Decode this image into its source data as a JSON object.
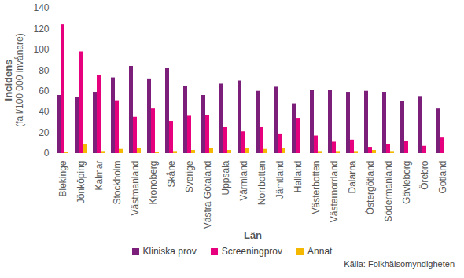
{
  "chart_data": {
    "type": "bar",
    "xlabel": "Län",
    "ylabel": "Incidens\n(fall/100 000 invånare)",
    "source": "Källa: Folkhälsomyndigheten",
    "categories": [
      "Blekinge",
      "Jönköping",
      "Kalmar",
      "Stockholm",
      "Västmanland",
      "Kronoberg",
      "Skåne",
      "Sverige",
      "Västra Götaland",
      "Uppsala",
      "Värmland",
      "Norrbotten",
      "Jämtland",
      "Halland",
      "Västerbotten",
      "Västernorrland",
      "Dalarna",
      "Östergötland",
      "Södermanland",
      "Gävleborg",
      "Örebro",
      "Gotland"
    ],
    "series": [
      {
        "name": "Kliniska prov",
        "color": "#7b1f7b",
        "values": [
          56,
          54,
          59,
          73,
          84,
          72,
          82,
          65,
          56,
          67,
          70,
          60,
          64,
          48,
          61,
          61,
          59,
          60,
          59,
          50,
          55,
          43
        ]
      },
      {
        "name": "Screeningprov",
        "color": "#e6007e",
        "values": [
          124,
          98,
          75,
          51,
          35,
          43,
          31,
          36,
          37,
          25,
          21,
          25,
          19,
          34,
          17,
          11,
          13,
          6,
          9,
          12,
          7,
          15
        ]
      },
      {
        "name": "Annat",
        "color": "#f5b800",
        "values": [
          1,
          9,
          2,
          4,
          5,
          1,
          2,
          3,
          5,
          3,
          5,
          4,
          5,
          0,
          2,
          2,
          2,
          3,
          2,
          0,
          0,
          0
        ]
      }
    ],
    "ylim": [
      0,
      140
    ],
    "yticks": [
      0,
      20,
      40,
      60,
      80,
      100,
      120,
      140
    ],
    "grid": false,
    "legend": "bottom"
  }
}
